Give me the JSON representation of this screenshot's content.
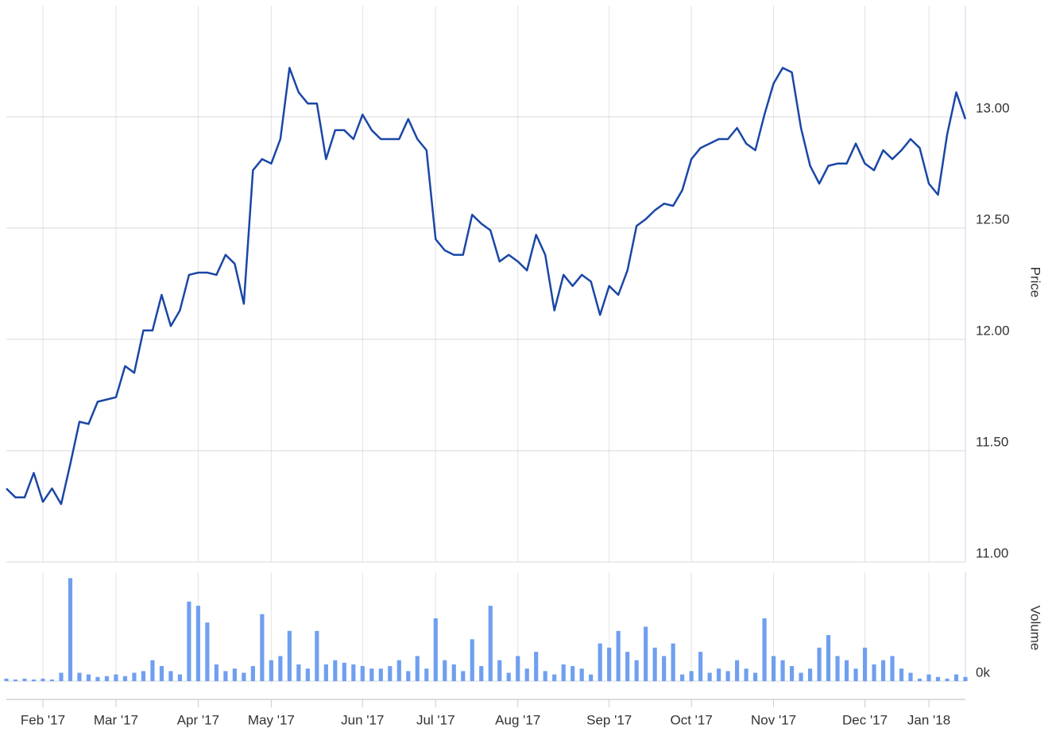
{
  "chart_data": {
    "type": "line",
    "categories": [
      null,
      null,
      null,
      null,
      "Feb '17",
      null,
      null,
      null,
      null,
      null,
      null,
      null,
      "Mar '17",
      null,
      null,
      null,
      null,
      null,
      null,
      null,
      null,
      "Apr '17",
      null,
      null,
      null,
      null,
      null,
      null,
      null,
      "May '17",
      null,
      null,
      null,
      null,
      null,
      null,
      null,
      null,
      null,
      "Jun '17",
      null,
      null,
      null,
      null,
      null,
      null,
      null,
      "Jul '17",
      null,
      null,
      null,
      null,
      null,
      null,
      null,
      null,
      "Aug '17",
      null,
      null,
      null,
      null,
      null,
      null,
      null,
      null,
      null,
      "Sep '17",
      null,
      null,
      null,
      null,
      null,
      null,
      null,
      null,
      "Oct '17",
      null,
      null,
      null,
      null,
      null,
      null,
      null,
      null,
      "Nov '17",
      null,
      null,
      null,
      null,
      null,
      null,
      null,
      null,
      null,
      "Dec '17",
      null,
      null,
      null,
      null,
      null,
      null,
      "Jan '18",
      null,
      null,
      null,
      null
    ],
    "series": [
      {
        "name": "Price",
        "color": "#1a47a6",
        "values": [
          11.33,
          11.29,
          11.29,
          11.4,
          11.27,
          11.33,
          11.26,
          11.44,
          11.63,
          11.62,
          11.72,
          11.73,
          11.74,
          11.88,
          11.85,
          12.04,
          12.04,
          12.2,
          12.06,
          12.13,
          12.29,
          12.3,
          12.3,
          12.29,
          12.38,
          12.34,
          12.16,
          12.76,
          12.81,
          12.79,
          12.9,
          13.22,
          13.11,
          13.06,
          13.06,
          12.81,
          12.94,
          12.94,
          12.9,
          13.01,
          12.94,
          12.9,
          12.9,
          12.9,
          12.99,
          12.9,
          12.85,
          12.45,
          12.4,
          12.38,
          12.38,
          12.56,
          12.52,
          12.49,
          12.35,
          12.38,
          12.35,
          12.31,
          12.47,
          12.38,
          12.13,
          12.29,
          12.24,
          12.29,
          12.26,
          12.11,
          12.24,
          12.2,
          12.31,
          12.51,
          12.54,
          12.58,
          12.61,
          12.6,
          12.67,
          12.81,
          12.86,
          12.88,
          12.9,
          12.9,
          12.95,
          12.88,
          12.85,
          13.01,
          13.15,
          13.22,
          13.2,
          12.95,
          12.78,
          12.7,
          12.78,
          12.79,
          12.79,
          12.88,
          12.79,
          12.76,
          12.85,
          12.81,
          12.85,
          12.9,
          12.86,
          12.7,
          12.65,
          12.92,
          13.11,
          12.99
        ]
      },
      {
        "name": "Volume",
        "type": "bar",
        "axis": "y2",
        "color": "#6f9ff0",
        "values": [
          3,
          2,
          3,
          2,
          3,
          2,
          10,
          123,
          10,
          8,
          5,
          6,
          8,
          6,
          10,
          12,
          25,
          18,
          12,
          8,
          95,
          90,
          70,
          20,
          12,
          15,
          10,
          18,
          80,
          25,
          30,
          60,
          20,
          15,
          60,
          20,
          25,
          22,
          20,
          18,
          15,
          15,
          18,
          25,
          12,
          30,
          15,
          75,
          25,
          20,
          12,
          50,
          18,
          90,
          25,
          10,
          30,
          15,
          35,
          12,
          8,
          20,
          18,
          15,
          8,
          45,
          40,
          60,
          35,
          25,
          65,
          40,
          30,
          45,
          8,
          12,
          35,
          10,
          15,
          12,
          25,
          15,
          10,
          75,
          30,
          25,
          18,
          10,
          15,
          40,
          55,
          30,
          25,
          15,
          40,
          20,
          25,
          30,
          15,
          10,
          3,
          8,
          5,
          3,
          8,
          5
        ]
      }
    ],
    "ylim": [
      11,
      13.5
    ],
    "yticks": [
      {
        "value": 11,
        "label": "11.00"
      },
      {
        "value": 11.5,
        "label": "11.50"
      },
      {
        "value": 12,
        "label": "12.00"
      },
      {
        "value": 12.5,
        "label": "12.50"
      },
      {
        "value": 13,
        "label": "13.00"
      }
    ],
    "y2lim": [
      0,
      130
    ],
    "y2ticks": [
      {
        "value": 0,
        "label": "0k"
      }
    ],
    "grid": true
  }
}
